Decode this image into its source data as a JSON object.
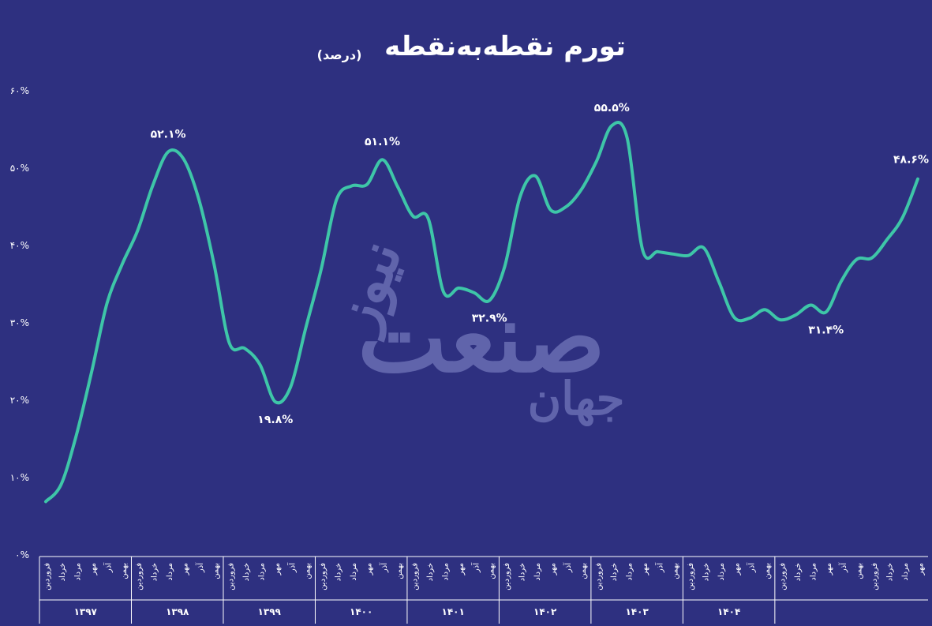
{
  "title": "تورم نقطه‌به‌نقطه",
  "subtitle": "(درصد)",
  "watermark": {
    "line1": "نیوز",
    "line2": "صنعت",
    "line3": "جهان"
  },
  "colors": {
    "background": "#2e3080",
    "line": "#3ec6a8",
    "text": "#ffffff",
    "watermark": "#8a8fcf"
  },
  "chart_data": {
    "type": "line",
    "title": "تورم نقطه‌به‌نقطه",
    "subtitle": "(درصد)",
    "ylabel": "",
    "xlabel": "",
    "ylim": [
      0,
      60
    ],
    "yticks": [
      "۰%",
      "۱۰%",
      "۲۰%",
      "۳۰%",
      "۴۰%",
      "۵۰%",
      "۶۰%"
    ],
    "grid": false,
    "months": [
      "فروردین",
      "خرداد",
      "مرداد",
      "مهر",
      "آذر",
      "بهمن"
    ],
    "years": [
      "۱۳۹۷",
      "۱۳۹۸",
      "۱۳۹۹",
      "۱۴۰۰",
      "۱۴۰۱",
      "۱۴۰۲",
      "۱۴۰۳",
      "۱۴۰۴"
    ],
    "series": [
      {
        "values": [
          6.9,
          9.1,
          15.5,
          23.7,
          32.5,
          37.6,
          41.9,
          47.8,
          52.1,
          51.2,
          46.0,
          37.6,
          27.4,
          26.7,
          24.6,
          19.8,
          21.7,
          29.4,
          36.9,
          45.9,
          47.7,
          47.9,
          51.1,
          47.6,
          43.8,
          43.5,
          34.0,
          34.5,
          33.9,
          32.9,
          37.3,
          46.3,
          49.0,
          44.6,
          45.0,
          47.2,
          50.9,
          55.5,
          53.9,
          39.5,
          39.2,
          38.9,
          38.7,
          39.7,
          35.3,
          30.7,
          30.6,
          31.7,
          30.4,
          31.0,
          32.3,
          31.4,
          35.4,
          38.2,
          38.4,
          40.8,
          43.6,
          48.6
        ]
      }
    ],
    "annotations": [
      {
        "label": "۵۲.۱%",
        "value": 52.1
      },
      {
        "label": "۱۹.۸%",
        "value": 19.8
      },
      {
        "label": "۵۱.۱%",
        "value": 51.1
      },
      {
        "label": "۳۲.۹%",
        "value": 32.9
      },
      {
        "label": "۵۵.۵%",
        "value": 55.5
      },
      {
        "label": "۳۱.۴%",
        "value": 31.4
      },
      {
        "label": "۴۸.۶%",
        "value": 48.6
      }
    ]
  }
}
